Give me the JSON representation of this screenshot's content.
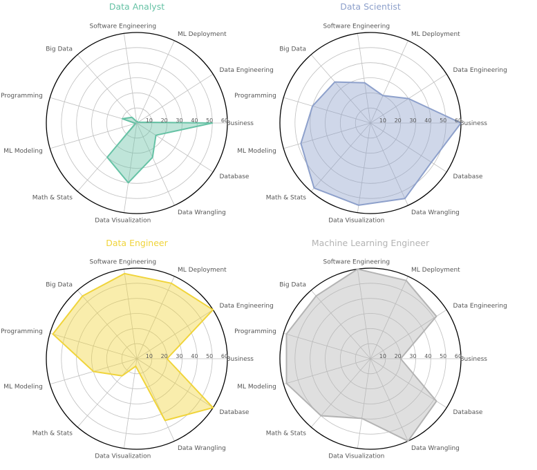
{
  "colors": {
    "data_analyst": "#66c2a5",
    "data_scientist": "#8da0cb",
    "data_engineer": "#f0d43a",
    "ml_engineer": "#b3b3b3",
    "grid": "#bfbfbf",
    "frame": "#000000"
  },
  "chart_data": [
    {
      "type": "radar",
      "title": "Data Analyst",
      "categories": [
        "Business",
        "Data Engineering",
        "ML Deployment",
        "Software Engineering",
        "Big Data",
        "Programming",
        "ML Modeling",
        "Math & Stats",
        "Data Visualization",
        "Data Wrangling",
        "Database"
      ],
      "values": [
        50,
        1,
        1,
        1,
        5,
        10,
        1,
        30,
        40,
        25,
        15
      ],
      "rlim": [
        0,
        60
      ],
      "rticks": [
        10,
        20,
        30,
        40,
        50,
        60
      ],
      "color": "#66c2a5"
    },
    {
      "type": "radar",
      "title": "Data Scientist",
      "categories": [
        "Business",
        "Data Engineering",
        "ML Deployment",
        "Software Engineering",
        "Big Data",
        "Programming",
        "ML Modeling",
        "Math & Stats",
        "Data Visualization",
        "Data Wrangling",
        "Database"
      ],
      "values": [
        60,
        30,
        20,
        27,
        36,
        40,
        48,
        57,
        55,
        55,
        48
      ],
      "rlim": [
        0,
        60
      ],
      "rticks": [
        10,
        20,
        30,
        40,
        50,
        60
      ],
      "color": "#8da0cb"
    },
    {
      "type": "radar",
      "title": "Data Engineer",
      "categories": [
        "Business",
        "Data Engineering",
        "ML Deployment",
        "Software Engineering",
        "Big Data",
        "Programming",
        "ML Modeling",
        "Math & Stats",
        "Data Visualization",
        "Data Wrangling",
        "Database"
      ],
      "values": [
        20,
        60,
        55,
        57,
        55,
        58,
        30,
        15,
        5,
        45,
        60
      ],
      "rlim": [
        0,
        60
      ],
      "rticks": [
        10,
        20,
        30,
        40,
        50,
        60
      ],
      "color": "#f0d43a"
    },
    {
      "type": "radar",
      "title": "Machine Learning Engineer",
      "categories": [
        "Business",
        "Data Engineering",
        "ML Deployment",
        "Software Engineering",
        "Big Data",
        "Programming",
        "ML Modeling",
        "Math & Stats",
        "Data Visualization",
        "Data Wrangling",
        "Database"
      ],
      "values": [
        20,
        52,
        57,
        60,
        55,
        58,
        58,
        50,
        40,
        60,
        52
      ],
      "rlim": [
        0,
        60
      ],
      "rticks": [
        10,
        20,
        30,
        40,
        50,
        60
      ],
      "color": "#b3b3b3"
    }
  ]
}
